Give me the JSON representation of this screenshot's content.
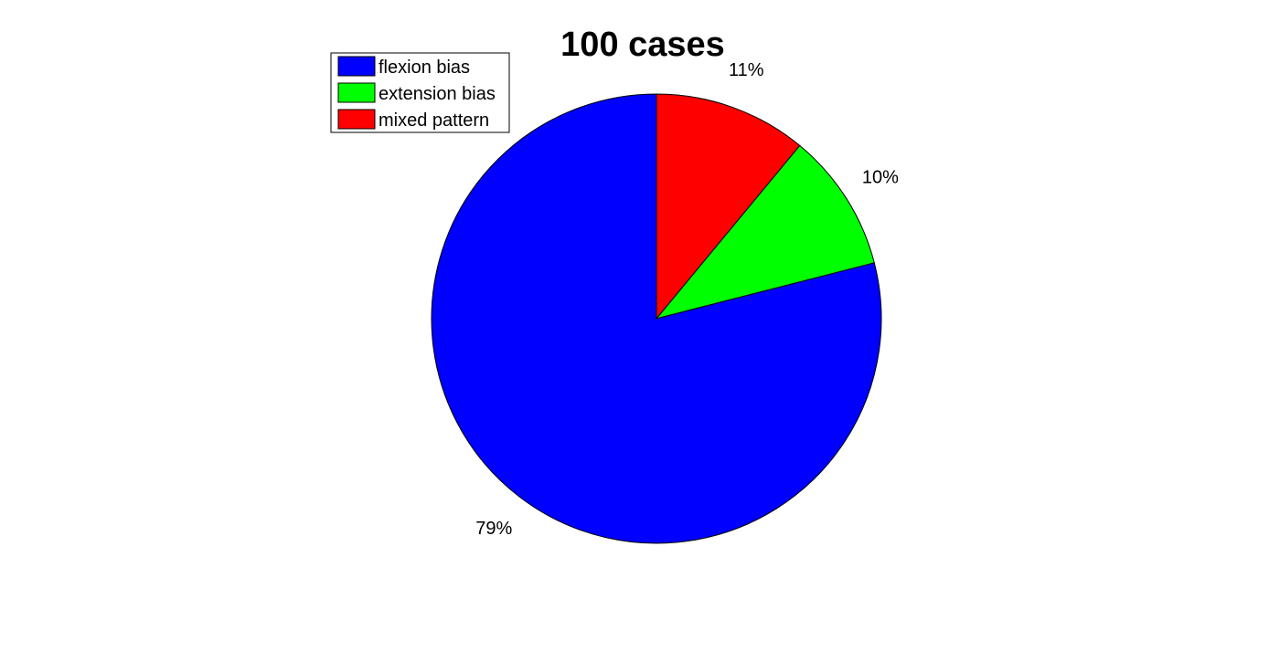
{
  "chart_data": {
    "type": "pie",
    "title": "100 cases",
    "slices": [
      {
        "label": "flexion bias",
        "value": 79,
        "percent_label": "79%",
        "color": "#0000ff"
      },
      {
        "label": "extension bias",
        "value": 10,
        "percent_label": "10%",
        "color": "#00ff00"
      },
      {
        "label": "mixed pattern",
        "value": 11,
        "percent_label": "11%",
        "color": "#ff0000"
      }
    ],
    "legend": {
      "placement": "top-left",
      "entries": [
        "flexion bias",
        "extension bias",
        "mixed pattern"
      ]
    }
  }
}
